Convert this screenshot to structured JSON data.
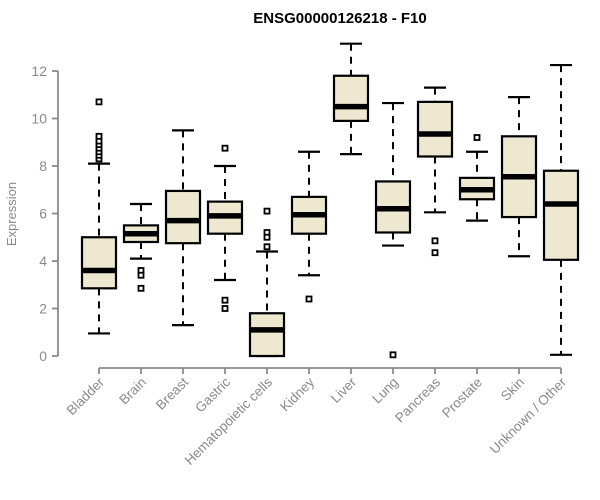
{
  "title": "ENSG00000126218 - F10",
  "colors": {
    "box_fill": "#ede8cf",
    "box_border": "#000000",
    "median": "#000000",
    "whisker": "#000000",
    "outlier_stroke": "#000000",
    "outlier_fill": "#ffffff",
    "axis": "#8a8a8a",
    "tick_label": "#8a8a8a",
    "title_color": "#000000",
    "background": "#ffffff"
  },
  "chart_data": {
    "type": "boxplot",
    "title": "ENSG00000126218 - F10",
    "xlabel": "",
    "ylabel": "Expression",
    "ylim": [
      0,
      12
    ],
    "yticks": [
      0,
      2,
      4,
      6,
      8,
      10,
      12
    ],
    "grid": false,
    "legend": "none",
    "categories": [
      "Bladder",
      "Brain",
      "Breast",
      "Gastric",
      "Hematopoietic cells",
      "Kidney",
      "Liver",
      "Lung",
      "Pancreas",
      "Prostate",
      "Skin",
      "Unknown / Other"
    ],
    "boxes": [
      {
        "category": "Bladder",
        "whisker_low": 0.95,
        "q1": 2.85,
        "median": 3.6,
        "q3": 5.0,
        "whisker_high": 8.1,
        "outliers": [
          8.3,
          8.45,
          8.6,
          8.75,
          8.9,
          9.05,
          9.25,
          10.7
        ]
      },
      {
        "category": "Brain",
        "whisker_low": 4.1,
        "q1": 4.8,
        "median": 5.15,
        "q3": 5.5,
        "whisker_high": 6.4,
        "outliers": [
          3.6,
          3.4,
          2.85
        ]
      },
      {
        "category": "Breast",
        "whisker_low": 1.3,
        "q1": 4.75,
        "median": 5.7,
        "q3": 6.95,
        "whisker_high": 9.5,
        "outliers": []
      },
      {
        "category": "Gastric",
        "whisker_low": 3.2,
        "q1": 5.15,
        "median": 5.9,
        "q3": 6.5,
        "whisker_high": 8.0,
        "outliers": [
          8.75,
          2.35,
          2.0
        ]
      },
      {
        "category": "Hematopoietic cells",
        "whisker_low": 0.0,
        "q1": 0.0,
        "median": 1.1,
        "q3": 1.8,
        "whisker_high": 4.4,
        "outliers": [
          6.1,
          5.2,
          5.0,
          4.6
        ]
      },
      {
        "category": "Kidney",
        "whisker_low": 3.4,
        "q1": 5.15,
        "median": 5.95,
        "q3": 6.7,
        "whisker_high": 8.6,
        "outliers": [
          2.4
        ]
      },
      {
        "category": "Liver",
        "whisker_low": 8.5,
        "q1": 9.9,
        "median": 10.5,
        "q3": 11.8,
        "whisker_high": 13.15,
        "outliers": []
      },
      {
        "category": "Lung",
        "whisker_low": 4.65,
        "q1": 5.2,
        "median": 6.2,
        "q3": 7.35,
        "whisker_high": 10.65,
        "outliers": [
          0.05
        ]
      },
      {
        "category": "Pancreas",
        "whisker_low": 6.05,
        "q1": 8.4,
        "median": 9.35,
        "q3": 10.7,
        "whisker_high": 11.3,
        "outliers": [
          4.85,
          4.35
        ]
      },
      {
        "category": "Prostate",
        "whisker_low": 5.7,
        "q1": 6.6,
        "median": 7.0,
        "q3": 7.5,
        "whisker_high": 8.6,
        "outliers": [
          9.2
        ]
      },
      {
        "category": "Skin",
        "whisker_low": 4.2,
        "q1": 5.85,
        "median": 7.55,
        "q3": 9.25,
        "whisker_high": 10.9,
        "outliers": []
      },
      {
        "category": "Unknown / Other",
        "whisker_low": 0.05,
        "q1": 4.05,
        "median": 6.4,
        "q3": 7.8,
        "whisker_high": 12.25,
        "outliers": []
      }
    ]
  }
}
